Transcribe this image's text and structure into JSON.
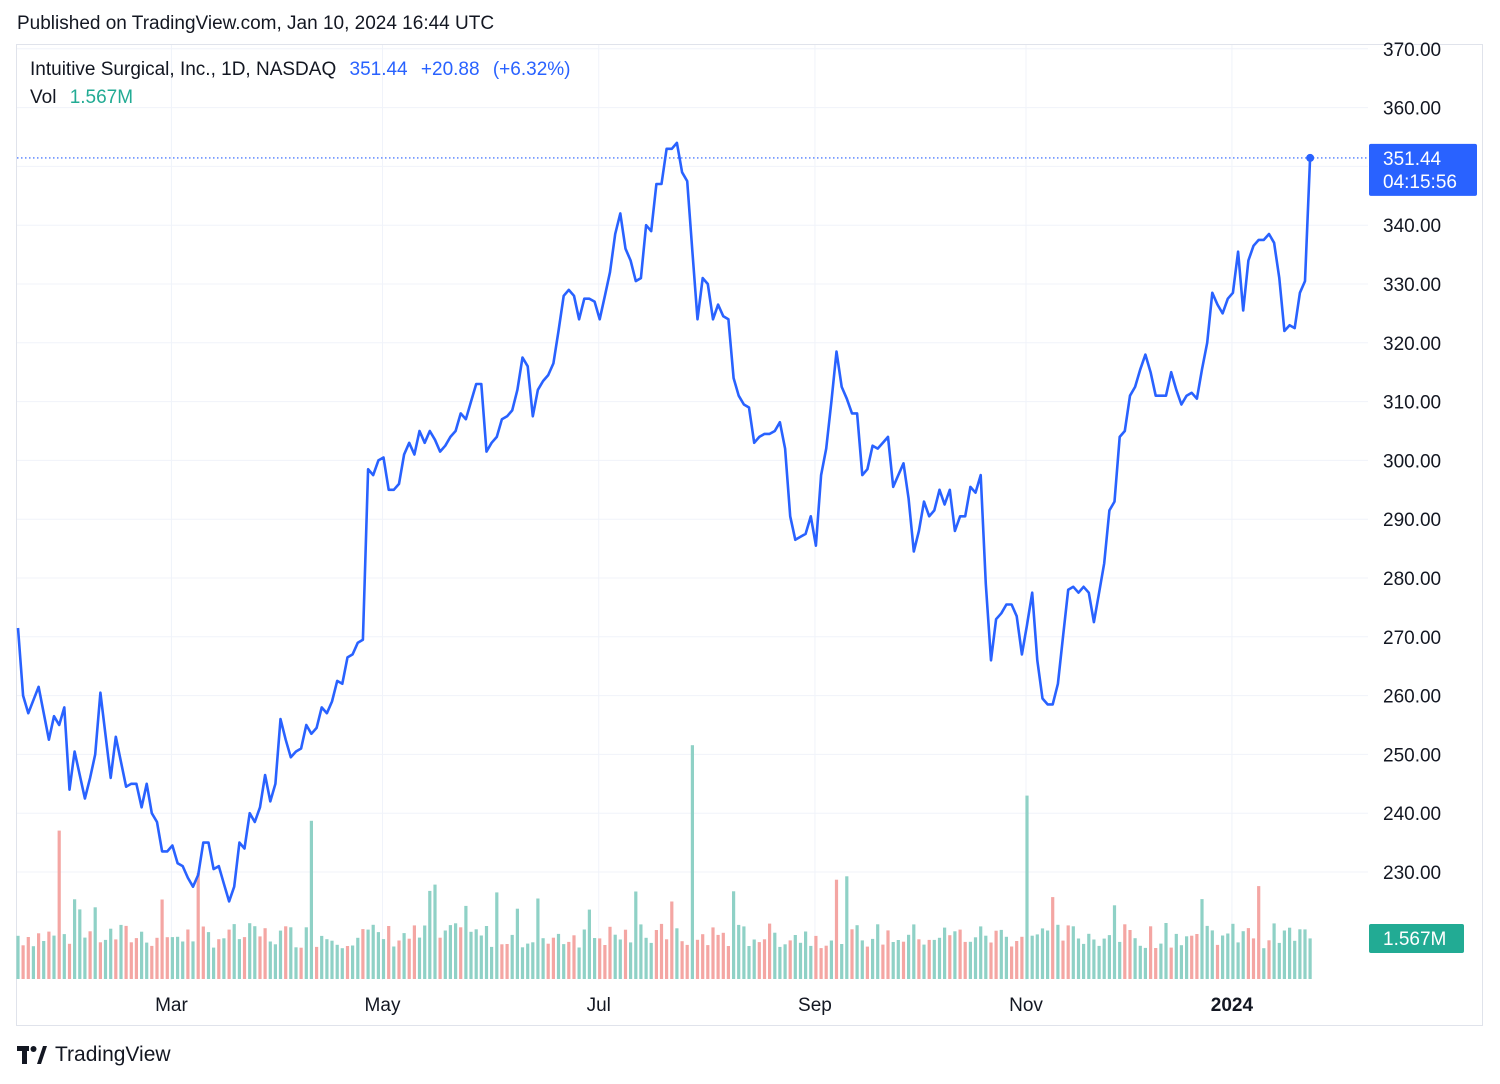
{
  "header": {
    "published_text": "Published on TradingView.com, Jan 10, 2024 16:44 UTC"
  },
  "legend": {
    "symbol": "Intuitive Surgical, Inc., 1D, NASDAQ",
    "price": "351.44",
    "change": "+20.88",
    "change_pct": "(+6.32%)",
    "vol_label": "Vol",
    "vol_value": "1.567M"
  },
  "price_label": {
    "value": "351.44",
    "countdown": "04:15:56"
  },
  "volume_label": "1.567M",
  "footer": {
    "brand": "TradingView"
  },
  "colors": {
    "line": "#2962ff",
    "volume_up": "#8fd1c6",
    "volume_down": "#f4a6a3",
    "volume_label_bg": "#22ab94",
    "price_label_bg": "#2962ff",
    "grid": "#f0f3fa"
  },
  "chart_data": {
    "type": "line",
    "title": "Intuitive Surgical, Inc., 1D, NASDAQ",
    "y_axis": {
      "position": "right",
      "ticks": [
        "230.00",
        "240.00",
        "250.00",
        "260.00",
        "270.00",
        "280.00",
        "290.00",
        "300.00",
        "310.00",
        "320.00",
        "330.00",
        "340.00",
        "350.00",
        "360.00",
        "370.00"
      ],
      "range": [
        222,
        370
      ]
    },
    "x_axis": {
      "tick_labels": [
        {
          "label": "Mar",
          "bold": false,
          "index": 30
        },
        {
          "label": "May",
          "bold": false,
          "index": 71
        },
        {
          "label": "Jul",
          "bold": false,
          "index": 113
        },
        {
          "label": "Sep",
          "bold": false,
          "index": 155
        },
        {
          "label": "Nov",
          "bold": false,
          "index": 196
        },
        {
          "label": "2024",
          "bold": true,
          "index": 236
        }
      ],
      "count": 246
    },
    "grid": true,
    "last_price": 351.44,
    "series": [
      {
        "name": "Intuitive Surgical",
        "anchors": [
          [
            0,
            271.5
          ],
          [
            1,
            260
          ],
          [
            2,
            257
          ],
          [
            4,
            261.5
          ],
          [
            6,
            252.5
          ],
          [
            7,
            256.5
          ],
          [
            8,
            255
          ],
          [
            9,
            258
          ],
          [
            10,
            244
          ],
          [
            11,
            250.5
          ],
          [
            13,
            242.5
          ],
          [
            14,
            246
          ],
          [
            15,
            250
          ],
          [
            16,
            260.5
          ],
          [
            18,
            246
          ],
          [
            19,
            253
          ],
          [
            21,
            244.5
          ],
          [
            22,
            245
          ],
          [
            23,
            245
          ],
          [
            24,
            241
          ],
          [
            25,
            245
          ],
          [
            26,
            240
          ],
          [
            27,
            238.5
          ],
          [
            28,
            233.5
          ],
          [
            29,
            233.5
          ],
          [
            30,
            234.5
          ],
          [
            31,
            231.5
          ],
          [
            32,
            231
          ],
          [
            33,
            229
          ],
          [
            34,
            227.5
          ],
          [
            35,
            229.5
          ],
          [
            36,
            235
          ],
          [
            37,
            235
          ],
          [
            38,
            230.5
          ],
          [
            39,
            231
          ],
          [
            40,
            228
          ],
          [
            41,
            225
          ],
          [
            42,
            227.5
          ],
          [
            43,
            235
          ],
          [
            44,
            234
          ],
          [
            45,
            240
          ],
          [
            46,
            238.5
          ],
          [
            47,
            241
          ],
          [
            48,
            246.5
          ],
          [
            49,
            242
          ],
          [
            50,
            245
          ],
          [
            51,
            256
          ],
          [
            52,
            252.5
          ],
          [
            53,
            249.5
          ],
          [
            54,
            250.5
          ],
          [
            55,
            251
          ],
          [
            56,
            255
          ],
          [
            57,
            253.5
          ],
          [
            58,
            254.5
          ],
          [
            59,
            258
          ],
          [
            60,
            257
          ],
          [
            61,
            259
          ],
          [
            62,
            262.5
          ],
          [
            63,
            262
          ],
          [
            64,
            266.5
          ],
          [
            65,
            267
          ],
          [
            66,
            269
          ],
          [
            67,
            269.5
          ],
          [
            68,
            298.5
          ],
          [
            69,
            297.5
          ],
          [
            70,
            300
          ],
          [
            71,
            300.5
          ],
          [
            72,
            295
          ],
          [
            73,
            295
          ],
          [
            74,
            296
          ],
          [
            75,
            301
          ],
          [
            76,
            303
          ],
          [
            77,
            301
          ],
          [
            78,
            305
          ],
          [
            79,
            303
          ],
          [
            80,
            305
          ],
          [
            81,
            303.5
          ],
          [
            82,
            301.5
          ],
          [
            83,
            302.5
          ],
          [
            84,
            304
          ],
          [
            85,
            305
          ],
          [
            86,
            308
          ],
          [
            87,
            307
          ],
          [
            88,
            310
          ],
          [
            89,
            313
          ],
          [
            90,
            313
          ],
          [
            91,
            301.5
          ],
          [
            92,
            303
          ],
          [
            93,
            304
          ],
          [
            94,
            307
          ],
          [
            95,
            307.5
          ],
          [
            96,
            308.5
          ],
          [
            97,
            312
          ],
          [
            98,
            317.5
          ],
          [
            99,
            316
          ],
          [
            100,
            307.5
          ],
          [
            101,
            312
          ],
          [
            102,
            313.5
          ],
          [
            103,
            314.5
          ],
          [
            104,
            316.5
          ],
          [
            105,
            322
          ],
          [
            106,
            328
          ],
          [
            107,
            329
          ],
          [
            108,
            328
          ],
          [
            109,
            324
          ],
          [
            110,
            327.5
          ],
          [
            111,
            327.5
          ],
          [
            112,
            327
          ],
          [
            113,
            324
          ],
          [
            114,
            328
          ],
          [
            115,
            332
          ],
          [
            116,
            338.5
          ],
          [
            117,
            342
          ],
          [
            118,
            336
          ],
          [
            119,
            334
          ],
          [
            120,
            330.5
          ],
          [
            121,
            331
          ],
          [
            122,
            340
          ],
          [
            123,
            339
          ],
          [
            124,
            347
          ],
          [
            125,
            347
          ],
          [
            126,
            353
          ],
          [
            127,
            353
          ],
          [
            128,
            354
          ],
          [
            129,
            349
          ],
          [
            130,
            347.5
          ],
          [
            131,
            335.5
          ],
          [
            132,
            324
          ],
          [
            133,
            331
          ],
          [
            134,
            330
          ],
          [
            135,
            324
          ],
          [
            136,
            326.5
          ],
          [
            137,
            324.5
          ],
          [
            138,
            324
          ],
          [
            139,
            314
          ],
          [
            140,
            311
          ],
          [
            141,
            309.5
          ],
          [
            142,
            309
          ],
          [
            143,
            303
          ],
          [
            144,
            304
          ],
          [
            145,
            304.5
          ],
          [
            146,
            304.5
          ],
          [
            147,
            305
          ],
          [
            148,
            306.5
          ],
          [
            149,
            302
          ],
          [
            150,
            290.5
          ],
          [
            151,
            286.5
          ],
          [
            152,
            287
          ],
          [
            153,
            287.5
          ],
          [
            154,
            290.5
          ],
          [
            155,
            285.5
          ],
          [
            156,
            297.5
          ],
          [
            157,
            302
          ],
          [
            158,
            310
          ],
          [
            159,
            318.5
          ],
          [
            160,
            312.5
          ],
          [
            161,
            310.5
          ],
          [
            162,
            308
          ],
          [
            163,
            308
          ],
          [
            164,
            297.5
          ],
          [
            165,
            298.5
          ],
          [
            166,
            302.5
          ],
          [
            167,
            302
          ],
          [
            168,
            303
          ],
          [
            169,
            304
          ],
          [
            170,
            295.5
          ],
          [
            171,
            297.5
          ],
          [
            172,
            299.5
          ],
          [
            173,
            293.5
          ],
          [
            174,
            284.5
          ],
          [
            175,
            288
          ],
          [
            176,
            293
          ],
          [
            177,
            290.5
          ],
          [
            178,
            291.5
          ],
          [
            179,
            295
          ],
          [
            180,
            292.5
          ],
          [
            181,
            295
          ],
          [
            182,
            288
          ],
          [
            183,
            290.5
          ],
          [
            184,
            290.5
          ],
          [
            185,
            295.5
          ],
          [
            186,
            294.5
          ],
          [
            187,
            297.5
          ],
          [
            188,
            279
          ],
          [
            189,
            266
          ],
          [
            190,
            273
          ],
          [
            191,
            274
          ],
          [
            192,
            275.5
          ],
          [
            193,
            275.5
          ],
          [
            194,
            273.5
          ],
          [
            195,
            267
          ],
          [
            196,
            272
          ],
          [
            197,
            277.5
          ],
          [
            198,
            266
          ],
          [
            199,
            259.5
          ],
          [
            200,
            258.5
          ],
          [
            201,
            258.5
          ],
          [
            202,
            262
          ],
          [
            203,
            270
          ],
          [
            204,
            278
          ],
          [
            205,
            278.5
          ],
          [
            206,
            277.5
          ],
          [
            207,
            278.5
          ],
          [
            208,
            277.5
          ],
          [
            209,
            272.5
          ],
          [
            210,
            277.5
          ],
          [
            211,
            282.5
          ],
          [
            212,
            291.5
          ],
          [
            213,
            293
          ],
          [
            214,
            304
          ],
          [
            215,
            305
          ],
          [
            216,
            311
          ],
          [
            217,
            312.5
          ],
          [
            218,
            315.5
          ],
          [
            219,
            318
          ],
          [
            220,
            315
          ],
          [
            221,
            311
          ],
          [
            222,
            311
          ],
          [
            223,
            311
          ],
          [
            224,
            315
          ],
          [
            225,
            312
          ],
          [
            226,
            309.5
          ],
          [
            227,
            311
          ],
          [
            228,
            311.5
          ],
          [
            229,
            310.5
          ],
          [
            230,
            315.5
          ],
          [
            231,
            320
          ],
          [
            232,
            328.5
          ],
          [
            233,
            326.5
          ],
          [
            234,
            325
          ],
          [
            235,
            327.5
          ],
          [
            236,
            328.5
          ],
          [
            237,
            335.5
          ],
          [
            238,
            325.5
          ],
          [
            239,
            334
          ],
          [
            240,
            336.5
          ],
          [
            241,
            337.5
          ],
          [
            242,
            337.5
          ],
          [
            243,
            338.5
          ],
          [
            244,
            337
          ],
          [
            245,
            331
          ],
          [
            246,
            322
          ],
          [
            247,
            323
          ],
          [
            248,
            322.5
          ],
          [
            249,
            328.5
          ],
          [
            250,
            330.5
          ],
          [
            251,
            351.5
          ]
        ]
      }
    ],
    "volume": {
      "name": "Vol",
      "last": "1.567M",
      "notable_spikes_M": [
        {
          "index": 8,
          "value": 10.6
        },
        {
          "index": 57,
          "value": 11.3
        },
        {
          "index": 131,
          "value": 16.7
        },
        {
          "index": 196,
          "value": 13.1
        }
      ]
    }
  }
}
